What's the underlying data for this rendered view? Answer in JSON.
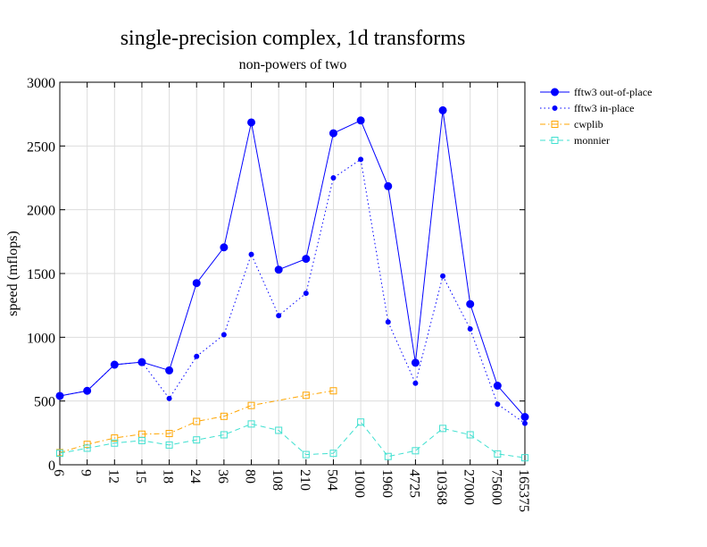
{
  "chart_data": {
    "type": "line",
    "title": "single-precision complex, 1d transforms",
    "subtitle": "non-powers of two",
    "xlabel": "",
    "ylabel": "speed (mflops)",
    "categories": [
      "6",
      "9",
      "12",
      "15",
      "18",
      "24",
      "36",
      "80",
      "108",
      "210",
      "504",
      "1000",
      "1960",
      "4725",
      "10368",
      "27000",
      "75600",
      "165375"
    ],
    "ylim": [
      0,
      3000
    ],
    "yticks": [
      0,
      500,
      1000,
      1500,
      2000,
      2500,
      3000
    ],
    "grid": true,
    "legend_position": "right",
    "series": [
      {
        "name": "fftw3 out-of-place",
        "color": "#0000ff",
        "marker": "filled-circle",
        "line": "solid",
        "values": [
          540,
          580,
          785,
          805,
          740,
          1425,
          1705,
          2685,
          1530,
          1615,
          2600,
          2700,
          2185,
          800,
          2780,
          1260,
          620,
          375
        ]
      },
      {
        "name": "fftw3 in-place",
        "color": "#0000ff",
        "marker": "small-dot",
        "line": "dotted",
        "values": [
          540,
          580,
          785,
          805,
          520,
          850,
          1020,
          1650,
          1170,
          1345,
          2250,
          2395,
          1120,
          640,
          1480,
          1065,
          475,
          325
        ]
      },
      {
        "name": "cwplib",
        "color": "#ffa500",
        "marker": "open-square",
        "line": "dashdot",
        "values": [
          95,
          160,
          210,
          240,
          245,
          340,
          380,
          465,
          null,
          545,
          580,
          null,
          null,
          null,
          null,
          null,
          null,
          null
        ]
      },
      {
        "name": "monnier",
        "color": "#40e0d0",
        "marker": "open-square",
        "line": "dashed",
        "values": [
          90,
          130,
          170,
          190,
          155,
          195,
          235,
          320,
          270,
          80,
          90,
          335,
          65,
          110,
          285,
          235,
          85,
          55
        ]
      }
    ]
  }
}
